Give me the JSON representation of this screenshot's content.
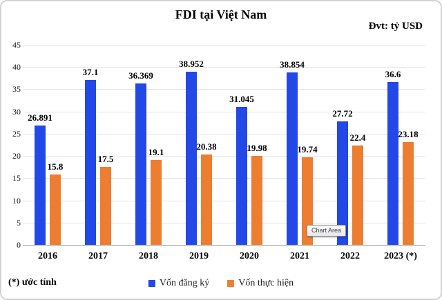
{
  "header": {
    "title": "FDI tại Việt Nam",
    "unit_label": "Đvt: tỷ USD"
  },
  "footer": {
    "note": "(*) ước tính"
  },
  "tooltip": {
    "text": "Chart Area"
  },
  "colors": {
    "bar_blue": "#2348E8",
    "bar_orange": "#ED7D31",
    "gridline": "#E2E2E2",
    "axis_line": "#C8C8C8",
    "text": "#000000"
  },
  "chart_data": {
    "type": "bar",
    "title": "FDI tại Việt Nam",
    "unit": "tỷ USD",
    "categories": [
      "2016",
      "2017",
      "2018",
      "2019",
      "2020",
      "2021",
      "2022",
      "2023 (*)"
    ],
    "series": [
      {
        "name": "Vốn đăng ký",
        "color": "#2348E8",
        "values": [
          26.891,
          37.1,
          36.369,
          38.952,
          31.045,
          38.854,
          27.72,
          36.6
        ]
      },
      {
        "name": "Vốn thực hiện",
        "color": "#ED7D31",
        "values": [
          15.8,
          17.5,
          19.1,
          20.38,
          19.98,
          19.74,
          22.4,
          23.18
        ]
      }
    ],
    "ylim": [
      0,
      45
    ],
    "yticks": [
      0,
      5,
      10,
      15,
      20,
      25,
      30,
      35,
      40,
      45
    ],
    "grid": true,
    "legend_position": "bottom",
    "data_labels": true,
    "footnote": "(*) ước tính"
  }
}
